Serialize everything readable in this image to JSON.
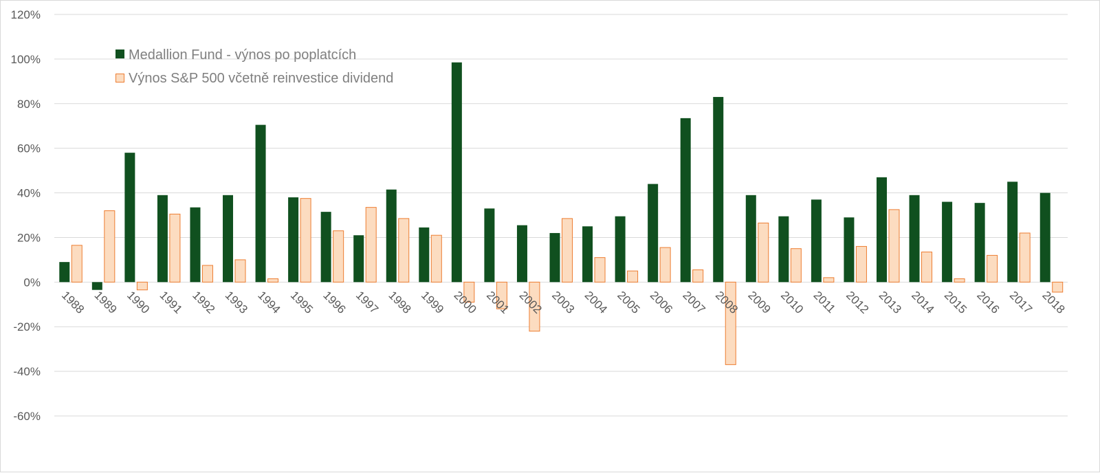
{
  "chart_data": {
    "type": "bar",
    "title": "",
    "xlabel": "",
    "ylabel": "",
    "ylim": [
      -60,
      120
    ],
    "ytick_step": 20,
    "y_unit": "%",
    "grid": true,
    "legend_position": "top-left",
    "categories": [
      "1988",
      "1989",
      "1990",
      "1991",
      "1992",
      "1993",
      "1994",
      "1995",
      "1996",
      "1997",
      "1998",
      "1999",
      "2000",
      "2001",
      "2002",
      "2003",
      "2004",
      "2005",
      "2006",
      "2007",
      "2008",
      "2009",
      "2010",
      "2011",
      "2012",
      "2013",
      "2014",
      "2015",
      "2016",
      "2017",
      "2018"
    ],
    "series": [
      {
        "name": "Medallion Fund - výnos po poplatcích",
        "color": "#10501f",
        "values": [
          9,
          -3.5,
          58,
          39,
          33.5,
          39,
          70.5,
          38,
          31.5,
          21,
          41.5,
          24.5,
          98.5,
          33,
          25.5,
          22,
          25,
          29.5,
          44,
          73.5,
          83,
          39,
          29.5,
          37,
          29,
          47,
          39,
          36,
          35.5,
          45,
          40
        ]
      },
      {
        "name": "Výnos S&P 500 včetně reinvestice dividend",
        "color": "#fcdcc0",
        "stroke": "#ed7d31",
        "values": [
          16.5,
          32,
          -3.5,
          30.5,
          7.5,
          10,
          1.5,
          37.5,
          23,
          33.5,
          28.5,
          21,
          -9,
          -12,
          -22,
          28.5,
          11,
          5,
          15.5,
          5.5,
          -37,
          26.5,
          15,
          2,
          16,
          32.5,
          13.5,
          1.5,
          12,
          22,
          -4.5
        ]
      }
    ]
  },
  "legend": {
    "items": [
      {
        "label": "Medallion Fund - výnos po poplatcích",
        "icon": "filled-square-icon",
        "color": "#10501f"
      },
      {
        "label": "Výnos S&P 500 včetně reinvestice dividend",
        "icon": "outlined-square-icon",
        "color": "#fcdcc0",
        "stroke": "#ed7d31"
      }
    ]
  }
}
